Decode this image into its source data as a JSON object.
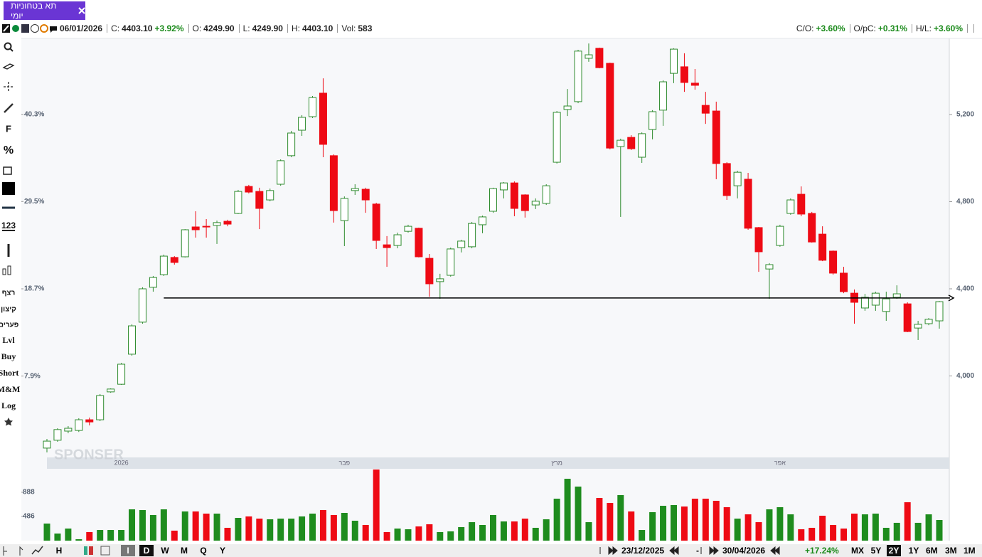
{
  "tab": {
    "title": "תא בטחוניות יומי"
  },
  "info_bar": {
    "date": "06/01/2026",
    "c_label": "C:",
    "c_value": "4403.10",
    "c_change": "+3.92%",
    "o_label": "O:",
    "o_value": "4249.90",
    "l_label": "L:",
    "l_value": "4249.90",
    "h_label": "H:",
    "h_value": "4403.10",
    "vol_label": "Vol:",
    "vol_value": "583",
    "co_label": "C/O:",
    "co_value": "+3.60%",
    "opc_label": "O/pC:",
    "opc_value": "+0.31%",
    "hl_label": "H/L:",
    "hl_value": "+3.60%"
  },
  "toolbar": {
    "items": [
      "F",
      "%",
      "123",
      "רצף",
      "קיצון",
      "פערים",
      "Lvl",
      "Buy",
      "Short",
      "M&M",
      "Log"
    ]
  },
  "bottom_bar": {
    "left_buttons": [
      "H",
      "I",
      "D",
      "W",
      "M",
      "Q",
      "Y"
    ],
    "from_date": "23/12/2025",
    "dash": "-",
    "to_date": "30/04/2026",
    "change": "+17.24%",
    "ranges": [
      "MX",
      "5Y",
      "2Y",
      "1Y",
      "6M",
      "3M",
      "1M"
    ],
    "selected_range": "2Y"
  },
  "chart_data": [
    {
      "type": "candlestick",
      "categories": [
        null,
        null,
        null,
        null,
        null,
        null,
        null,
        "2026",
        null,
        null,
        null,
        null,
        null,
        null,
        null,
        null,
        null,
        null,
        null,
        null,
        null,
        null,
        null,
        null,
        null,
        null,
        null,
        null,
        "פבר",
        null,
        null,
        null,
        null,
        null,
        null,
        null,
        null,
        null,
        null,
        null,
        null,
        null,
        null,
        null,
        null,
        null,
        null,
        null,
        "מרץ",
        null,
        null,
        null,
        null,
        null,
        null,
        null,
        null,
        null,
        null,
        null,
        null,
        null,
        null,
        null,
        null,
        null,
        null,
        null,
        null,
        "אפר",
        null,
        null,
        null,
        null,
        null,
        null,
        null,
        null,
        null,
        null,
        null,
        null,
        null,
        null,
        null
      ],
      "open": [
        3669,
        3705,
        3747,
        3750,
        3799,
        3799,
        3927,
        3962,
        4100,
        4247,
        4407,
        4465,
        4544,
        4547,
        4684,
        4687,
        4691,
        4710,
        4746,
        4870,
        4847,
        4808,
        4880,
        5011,
        5128,
        5190,
        5298,
        5011,
        4713,
        4851,
        4857,
        4789,
        4602,
        4599,
        4664,
        4678,
        4540,
        4433,
        4462,
        4589,
        4593,
        4694,
        4756,
        4854,
        4886,
        4831,
        4785,
        4792,
        4981,
        5223,
        5259,
        5458,
        5504,
        5435,
        5053,
        5095,
        5004,
        5131,
        5220,
        5389,
        5419,
        5344,
        5242,
        5216,
        4975,
        4873,
        4903,
        4681,
        4491,
        4599,
        4746,
        4834,
        4746,
        4651,
        4573,
        4472,
        4380,
        4312,
        4325,
        4296,
        4361,
        4331,
        4220,
        4240,
        4253
      ],
      "high": [
        3711,
        3760,
        3770,
        3806,
        3809,
        3917,
        3943,
        4060,
        4237,
        4407,
        4459,
        4557,
        4550,
        4674,
        4756,
        4720,
        4713,
        4717,
        4854,
        4877,
        4864,
        4860,
        4994,
        5125,
        5197,
        5285,
        5366,
        5017,
        4824,
        4880,
        4864,
        4795,
        4642,
        4658,
        4694,
        4681,
        4560,
        4469,
        4589,
        4625,
        4707,
        4736,
        4864,
        4890,
        4893,
        4834,
        4815,
        4880,
        5216,
        5317,
        5497,
        5526,
        5507,
        5438,
        5089,
        5105,
        5118,
        5220,
        5357,
        5504,
        5481,
        5409,
        5304,
        5259,
        4981,
        4942,
        4932,
        4684,
        4518,
        4694,
        4815,
        4870,
        4753,
        4687,
        4576,
        4501,
        4397,
        4377,
        4387,
        4387,
        4416,
        4338,
        4253,
        4266,
        4344
      ],
      "low": [
        3649,
        3698,
        3737,
        3743,
        3773,
        3793,
        3923,
        3959,
        4093,
        4240,
        4387,
        4459,
        4511,
        4544,
        4635,
        4635,
        4606,
        4687,
        4743,
        4838,
        4674,
        4802,
        4873,
        5004,
        5102,
        5184,
        5004,
        4704,
        4596,
        4831,
        4749,
        4583,
        4501,
        4586,
        4658,
        4544,
        4364,
        4354,
        4456,
        4567,
        4586,
        4655,
        4749,
        4815,
        4733,
        4727,
        4766,
        4785,
        4975,
        5193,
        5252,
        5442,
        5412,
        5040,
        4730,
        5037,
        4978,
        5086,
        5148,
        5344,
        5304,
        5314,
        5157,
        4903,
        4808,
        4815,
        4671,
        4478,
        4354,
        4593,
        4740,
        4733,
        4612,
        4527,
        4465,
        4380,
        4240,
        4299,
        4299,
        4253,
        4354,
        4201,
        4165,
        4233,
        4217
      ],
      "close": [
        3701,
        3754,
        3760,
        3799,
        3789,
        3910,
        3940,
        4054,
        4230,
        4400,
        4452,
        4550,
        4521,
        4671,
        4671,
        4684,
        4704,
        4697,
        4847,
        4844,
        4769,
        4851,
        4988,
        5115,
        5187,
        5278,
        5063,
        4759,
        4815,
        4860,
        4808,
        4622,
        4589,
        4648,
        4687,
        4547,
        4423,
        4446,
        4583,
        4619,
        4700,
        4730,
        4860,
        4886,
        4769,
        4759,
        4802,
        4873,
        5210,
        5239,
        5491,
        5474,
        5415,
        5046,
        5082,
        5043,
        5112,
        5213,
        5350,
        5500,
        5347,
        5334,
        5206,
        4975,
        4828,
        4935,
        4678,
        4570,
        4511,
        4687,
        4808,
        4743,
        4615,
        4531,
        4472,
        4387,
        4338,
        4361,
        4380,
        4354,
        4377,
        4204,
        4237,
        4260,
        4341
      ],
      "ylim": [
        3636,
        5546
      ],
      "yticks": [
        {
          "value": 4000,
          "label": "4,000"
        },
        {
          "value": 4400,
          "label": "4,400"
        },
        {
          "value": 4800,
          "label": "4,800"
        },
        {
          "value": 5200,
          "label": "5,200"
        }
      ],
      "y2lim": [
        -1.9,
        49.6
      ],
      "y2ticks": [
        {
          "value": 7.9,
          "label": "7.9%"
        },
        {
          "value": 18.7,
          "label": "18.7%"
        },
        {
          "value": 29.5,
          "label": "29.5%"
        },
        {
          "value": 40.3,
          "label": "40.3%"
        }
      ],
      "up_color": "#2e8b2e",
      "down_color": "#ee0a14",
      "support_line": 4358,
      "watermark": "SPONSER"
    },
    {
      "type": "bar",
      "values": [
        368,
        202,
        285,
        108,
        226,
        261,
        261,
        261,
        604,
        592,
        510,
        604,
        250,
        569,
        569,
        533,
        533,
        297,
        462,
        486,
        450,
        439,
        450,
        450,
        486,
        533,
        592,
        510,
        545,
        415,
        344,
        1266,
        226,
        285,
        273,
        320,
        356,
        226,
        238,
        309,
        391,
        344,
        510,
        403,
        403,
        450,
        297,
        439,
        781,
        1112,
        982,
        391,
        793,
        710,
        841,
        569,
        261,
        557,
        663,
        675,
        651,
        781,
        781,
        746,
        640,
        450,
        521,
        391,
        604,
        640,
        521,
        273,
        297,
        498,
        344,
        285,
        533,
        521,
        533,
        297,
        380,
        722,
        380,
        521,
        427
      ],
      "ylim": [
        84,
        1266
      ],
      "yticks": [
        486,
        888
      ],
      "up_color": "#1e8c1e",
      "down_color": "#ee0a14"
    }
  ]
}
